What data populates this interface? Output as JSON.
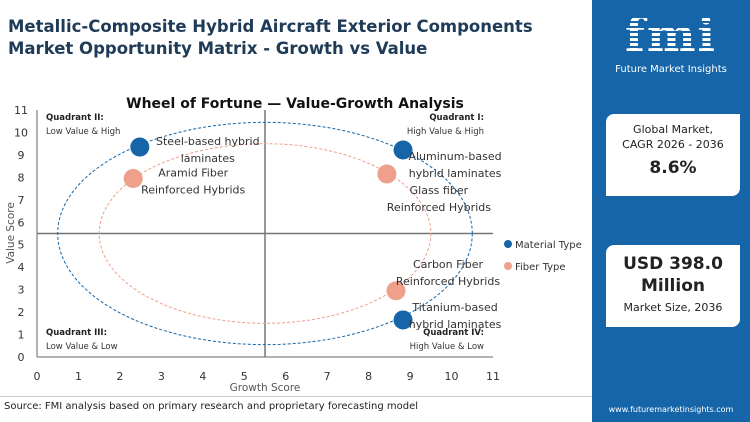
{
  "header": {
    "title": "Metallic-Composite Hybrid Aircraft Exterior Components Market Opportunity Matrix - Growth vs Value"
  },
  "sidebar": {
    "logo": "fmi",
    "logo_sub": "Future Market Insights",
    "cagr_label_1": "Global Market,",
    "cagr_label_2": "CAGR 2026 - 2036",
    "cagr_value": "8.6%",
    "size_value_1": "USD 398.0",
    "size_value_2": "Million",
    "size_label": "Market Size, 2036",
    "url": "www.futuremarketinsights.com",
    "color": "#1565a8"
  },
  "footer": {
    "source": "Source: FMI analysis based on primary research and proprietary forecasting model"
  },
  "chart_data": {
    "type": "scatter",
    "title": "Wheel of Fortune — Value-Growth  Analysis",
    "xlabel": "Growth Score",
    "ylabel": "Value Score",
    "xlim": [
      0,
      11
    ],
    "ylim": [
      0,
      11
    ],
    "xticks": [
      0,
      1,
      2,
      3,
      4,
      5,
      6,
      7,
      8,
      9,
      10,
      11
    ],
    "yticks": [
      0,
      1,
      2,
      3,
      4,
      5,
      6,
      7,
      8,
      9,
      10,
      11
    ],
    "dividers": {
      "x": 5.5,
      "y": 5.5
    },
    "quadrants": [
      {
        "name": "Quadrant II:",
        "desc": "Low Value & High",
        "pos": "top-left"
      },
      {
        "name": "Quadrant I:",
        "desc": "High Value & High",
        "pos": "top-right"
      },
      {
        "name": "Quadrant III:",
        "desc": "Low Value & Low",
        "pos": "bottom-left"
      },
      {
        "name": "Quadrant IV:",
        "desc": "High Value & Low",
        "pos": "bottom-right"
      }
    ],
    "legend_position": "right",
    "series": [
      {
        "name": "Material Type",
        "color": "#1565a8",
        "ellipse": {
          "cx": 5.5,
          "cy": 5.5,
          "rx": 5,
          "ry": 4.95
        },
        "points": [
          {
            "label": [
              "Steel-based hybrid",
              "laminates"
            ],
            "x": 2.48,
            "y": 9.35
          },
          {
            "label": [
              "Aluminum-based",
              "hybrid laminates"
            ],
            "x": 8.83,
            "y": 9.22
          },
          {
            "label": [
              "Titanium-based",
              "hybrid laminates"
            ],
            "x": 8.83,
            "y": 1.65
          }
        ]
      },
      {
        "name": "Fiber Type",
        "color": "#eea08a",
        "ellipse": {
          "cx": 5.5,
          "cy": 5.5,
          "rx": 4,
          "ry": 4
        },
        "points": [
          {
            "label": [
              "Aramid Fiber",
              "Reinforced Hybrids"
            ],
            "x": 2.32,
            "y": 7.95
          },
          {
            "label": [
              "Glass fiber",
              "Reinforced Hybrids"
            ],
            "x": 8.44,
            "y": 8.15
          },
          {
            "label": [
              "Carbon Fiber",
              "Reinforced Hybrids"
            ],
            "x": 8.66,
            "y": 2.95
          }
        ]
      }
    ]
  }
}
